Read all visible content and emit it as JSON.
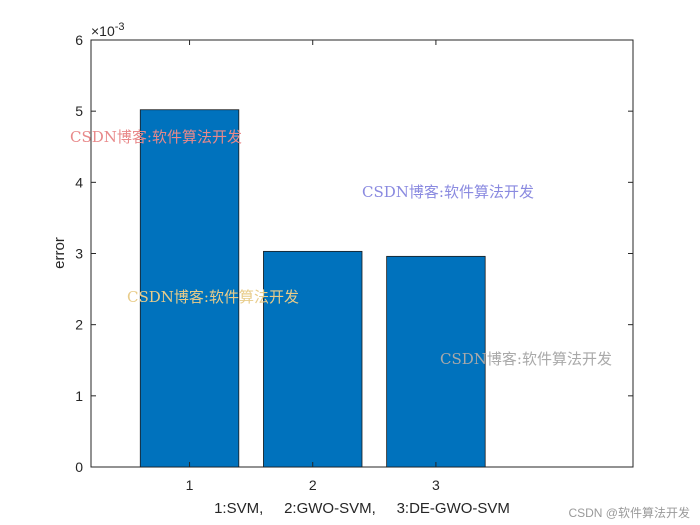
{
  "chart_data": {
    "type": "bar",
    "categories": [
      "1",
      "2",
      "3"
    ],
    "values": [
      0.00502,
      0.00303,
      0.00296
    ],
    "bar_color": "#0072BD",
    "xlabel": "1:SVM,     2:GWO-SVM,     3:DE-GWO-SVM",
    "ylabel": "error",
    "ylim": [
      0,
      0.006
    ],
    "yticks": [
      "0",
      "1",
      "2",
      "3",
      "4",
      "5",
      "6"
    ],
    "exponent_base": "×10",
    "exponent_power": "-3",
    "grid": false,
    "legend": "none"
  },
  "watermarks": [
    {
      "text": "CSDN博客:软件算法开发",
      "color": "#e8898a"
    },
    {
      "text": "CSDN博客:软件算法开发",
      "color": "#8a8ae0"
    },
    {
      "text": "CSDN博客:软件算法开发",
      "color": "#e8cc8a"
    },
    {
      "text": "CSDN博客:软件算法开发",
      "color": "#a9a9a9"
    }
  ],
  "credit": "CSDN @软件算法开发"
}
